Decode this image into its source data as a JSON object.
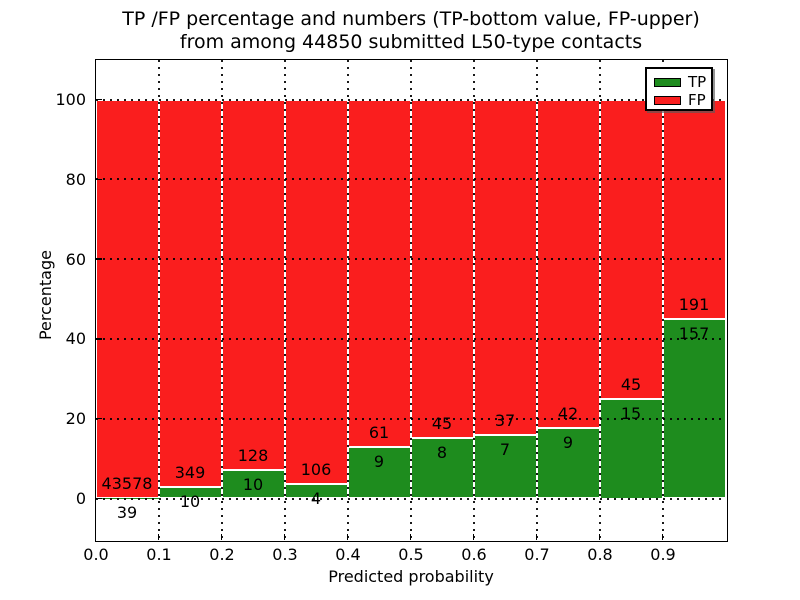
{
  "chart_data": {
    "type": "bar",
    "stacked": true,
    "normalized_to_percent": true,
    "title_lines": [
      "TP /FP percentage and numbers (TP-bottom value, FP-upper)",
      "from among 44850 submitted L50-type contacts"
    ],
    "xlabel": "Predicted probability",
    "ylabel": "Percentage",
    "total_submitted": 44850,
    "xlim": [
      0.0,
      1.0
    ],
    "ylim": [
      -10.3,
      110.3
    ],
    "xtick_labels": [
      "0.0",
      "0.1",
      "0.2",
      "0.3",
      "0.4",
      "0.5",
      "0.6",
      "0.7",
      "0.8",
      "0.9"
    ],
    "ytick_labels": [
      "0",
      "20",
      "40",
      "60",
      "80",
      "100"
    ],
    "grid_style": "dotted",
    "legend": {
      "position": "upper-right",
      "entries": [
        {
          "label": "TP",
          "color": "#1e8c1e"
        },
        {
          "label": "FP",
          "color": "#fa1e1e"
        }
      ]
    },
    "bins": [
      {
        "x_range": [
          0.0,
          0.1
        ],
        "tp_count": 39,
        "fp_count": 43578,
        "tp_pct": 0.09,
        "fp_pct": 99.91
      },
      {
        "x_range": [
          0.1,
          0.2
        ],
        "tp_count": 10,
        "fp_count": 349,
        "tp_pct": 2.79,
        "fp_pct": 97.21
      },
      {
        "x_range": [
          0.2,
          0.3
        ],
        "tp_count": 10,
        "fp_count": 128,
        "tp_pct": 7.25,
        "fp_pct": 92.75
      },
      {
        "x_range": [
          0.3,
          0.4
        ],
        "tp_count": 4,
        "fp_count": 106,
        "tp_pct": 3.64,
        "fp_pct": 96.36
      },
      {
        "x_range": [
          0.4,
          0.5
        ],
        "tp_count": 9,
        "fp_count": 61,
        "tp_pct": 12.86,
        "fp_pct": 87.14
      },
      {
        "x_range": [
          0.5,
          0.6
        ],
        "tp_count": 8,
        "fp_count": 45,
        "tp_pct": 15.09,
        "fp_pct": 84.91
      },
      {
        "x_range": [
          0.6,
          0.7
        ],
        "tp_count": 7,
        "fp_count": 37,
        "tp_pct": 15.91,
        "fp_pct": 84.09
      },
      {
        "x_range": [
          0.7,
          0.8
        ],
        "tp_count": 9,
        "fp_count": 42,
        "tp_pct": 17.65,
        "fp_pct": 82.35
      },
      {
        "x_range": [
          0.8,
          0.9
        ],
        "tp_count": 15,
        "fp_count": 45,
        "tp_pct": 25.0,
        "fp_pct": 75.0
      },
      {
        "x_range": [
          0.9,
          1.0
        ],
        "tp_count": 157,
        "fp_count": 191,
        "tp_pct": 45.11,
        "fp_pct": 54.89
      }
    ]
  }
}
